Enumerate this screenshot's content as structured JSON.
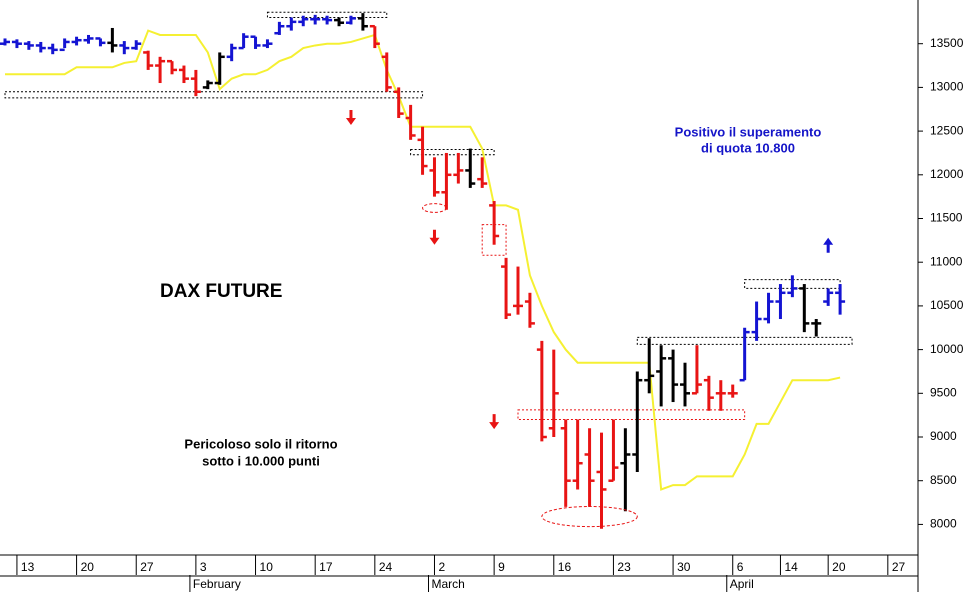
{
  "chart_data": {
    "type": "ohlc",
    "title": "DAX FUTURE",
    "annotations": [
      [
        "Positivo il superamento",
        "di quota 10.800"
      ],
      [
        "Pericoloso solo il ritorno",
        "sotto i 10.000 punti"
      ]
    ],
    "categories": [
      null,
      "13",
      null,
      null,
      null,
      null,
      "20",
      null,
      null,
      null,
      null,
      "27",
      null,
      null,
      null,
      null,
      "3",
      null,
      null,
      null,
      null,
      "10",
      null,
      null,
      null,
      null,
      "17",
      null,
      null,
      null,
      null,
      "24",
      null,
      null,
      null,
      null,
      "2",
      null,
      null,
      null,
      null,
      "9",
      null,
      null,
      null,
      null,
      "16",
      null,
      null,
      null,
      null,
      "23",
      null,
      null,
      null,
      null,
      "30",
      null,
      null,
      null,
      null,
      "6",
      null,
      null,
      null,
      "14",
      null,
      null,
      null,
      "20",
      null,
      null,
      null,
      null,
      "27",
      null,
      null
    ],
    "months": [
      {
        "index": 16,
        "label": "February"
      },
      {
        "index": 36,
        "label": "March"
      },
      {
        "index": 61,
        "label": "April"
      }
    ],
    "open": [
      13500,
      13520,
      13500,
      13480,
      13450,
      13430,
      13520,
      13540,
      13560,
      13510,
      13480,
      13450,
      13400,
      13250,
      13300,
      13200,
      13100,
      13000,
      13050,
      13350,
      13450,
      13580,
      13480,
      13620,
      13700,
      13750,
      13780,
      13780,
      13770,
      13740,
      13790,
      13700,
      13350,
      12950,
      12650,
      12400,
      12050,
      11800,
      12000,
      12050,
      11950,
      11650,
      10950,
      10500,
      10550,
      10000,
      9100,
      9100,
      8500,
      8800,
      8600,
      8500,
      8700,
      8800,
      9650,
      9750,
      9900,
      9600,
      9500,
      9650,
      9500,
      9500,
      9650,
      10200,
      10350,
      10550,
      10650,
      10700,
      10300,
      10550,
      10650,
      null,
      null,
      null,
      null,
      null,
      null
    ],
    "high": [
      13560,
      13550,
      13530,
      13520,
      13500,
      13560,
      13580,
      13600,
      13560,
      13680,
      13530,
      13540,
      13420,
      13350,
      13300,
      13250,
      13200,
      13080,
      13400,
      13500,
      13620,
      13580,
      13550,
      13750,
      13800,
      13820,
      13830,
      13820,
      13800,
      13820,
      13850,
      13700,
      13400,
      13000,
      12800,
      12550,
      12200,
      12250,
      12250,
      12300,
      12200,
      11700,
      11050,
      10950,
      10650,
      10100,
      10000,
      9200,
      9200,
      9100,
      9050,
      9200,
      9100,
      9750,
      10130,
      10050,
      10000,
      9850,
      10050,
      9700,
      9650,
      9600,
      10250,
      10550,
      10650,
      10750,
      10850,
      10750,
      10350,
      10700,
      10750,
      null,
      null,
      null,
      null,
      null,
      null
    ],
    "low": [
      13480,
      13450,
      13430,
      13400,
      13380,
      13450,
      13480,
      13500,
      13470,
      13400,
      13380,
      13430,
      13200,
      13050,
      13150,
      13050,
      12900,
      12980,
      13030,
      13300,
      13450,
      13440,
      13450,
      13600,
      13650,
      13700,
      13720,
      13720,
      13700,
      13720,
      13650,
      13450,
      12950,
      12650,
      12400,
      12000,
      11750,
      11600,
      11900,
      11850,
      11850,
      11200,
      10350,
      10400,
      10250,
      8950,
      9000,
      8200,
      8400,
      8200,
      7950,
      8500,
      8150,
      8600,
      9500,
      9350,
      9400,
      9350,
      9500,
      9300,
      9300,
      9450,
      9650,
      10100,
      10300,
      10350,
      10600,
      10200,
      10150,
      10500,
      10400,
      null,
      null,
      null,
      null,
      null,
      null
    ],
    "close": [
      13520,
      13500,
      13480,
      13450,
      13430,
      13520,
      13540,
      13560,
      13510,
      13480,
      13450,
      13500,
      13250,
      13300,
      13200,
      13100,
      12950,
      13050,
      13350,
      13450,
      13580,
      13480,
      13500,
      13700,
      13750,
      13780,
      13780,
      13770,
      13740,
      13790,
      13700,
      13500,
      13000,
      12700,
      12450,
      12100,
      11800,
      12000,
      12050,
      11900,
      11900,
      11300,
      10400,
      10500,
      10300,
      9000,
      9500,
      8500,
      8700,
      8500,
      8400,
      8650,
      8800,
      9650,
      9700,
      9900,
      9600,
      9500,
      9600,
      9450,
      9500,
      9500,
      10200,
      10350,
      10550,
      10650,
      10700,
      10300,
      10300,
      10650,
      10550,
      null,
      null,
      null,
      null,
      null,
      null
    ],
    "bar_colors": [
      "#1414d2",
      "#1414d2",
      "#1414d2",
      "#1414d2",
      "#1414d2",
      "#1414d2",
      "#1414d2",
      "#1414d2",
      "#1414d2",
      "#000000",
      "#1414d2",
      "#1414d2",
      "#e81414",
      "#e81414",
      "#e81414",
      "#e81414",
      "#e81414",
      "#000000",
      "#000000",
      "#1414d2",
      "#1414d2",
      "#1414d2",
      "#1414d2",
      "#1414d2",
      "#1414d2",
      "#1414d2",
      "#1414d2",
      "#1414d2",
      "#000000",
      "#1414d2",
      "#000000",
      "#e81414",
      "#e81414",
      "#e81414",
      "#e81414",
      "#e81414",
      "#e81414",
      "#e81414",
      "#e81414",
      "#000000",
      "#e81414",
      "#e81414",
      "#e81414",
      "#e81414",
      "#e81414",
      "#e81414",
      "#e81414",
      "#e81414",
      "#e81414",
      "#e81414",
      "#e81414",
      "#e81414",
      "#000000",
      "#000000",
      "#000000",
      "#000000",
      "#000000",
      "#000000",
      "#e81414",
      "#e81414",
      "#e81414",
      "#e81414",
      "#1414d2",
      "#1414d2",
      "#1414d2",
      "#1414d2",
      "#1414d2",
      "#000000",
      "#000000",
      "#1414d2",
      "#1414d2",
      null,
      null,
      null,
      null,
      null,
      null
    ],
    "stop": {
      "color": "#f5f032",
      "values": [
        13150,
        13150,
        13150,
        13150,
        13150,
        13150,
        13230,
        13230,
        13230,
        13230,
        13280,
        13300,
        13650,
        13600,
        13600,
        13600,
        13600,
        13400,
        12980,
        13100,
        13150,
        13150,
        13200,
        13300,
        13350,
        13450,
        13480,
        13500,
        13500,
        13520,
        13560,
        13600,
        13200,
        12900,
        12550,
        12550,
        12550,
        12550,
        12550,
        12550,
        12300,
        11650,
        11650,
        11600,
        10850,
        10500,
        10200,
        10000,
        9850,
        9850,
        9850,
        9850,
        9850,
        9850,
        9850,
        8400,
        8450,
        8450,
        8550,
        8550,
        8550,
        8550,
        8800,
        9150,
        9150,
        9400,
        9650,
        9650,
        9650,
        9650,
        9680,
        null,
        null,
        null,
        null,
        null,
        null
      ]
    },
    "levels": [
      {
        "start": 22,
        "end": 32,
        "low": 13800,
        "high": 13860,
        "color": "#000000"
      },
      {
        "start": 0,
        "end": 35,
        "low": 12880,
        "high": 12950,
        "color": "#000000"
      },
      {
        "start": 34,
        "end": 41,
        "low": 12230,
        "high": 12290,
        "color": "#000000"
      },
      {
        "start": 40,
        "end": 42,
        "low": 11080,
        "high": 11430,
        "color": "#e81414"
      },
      {
        "start": 43,
        "end": 62,
        "low": 9200,
        "high": 9310,
        "color": "#e81414"
      },
      {
        "start": 53,
        "end": 71,
        "low": 10060,
        "high": 10140,
        "color": "#000000"
      },
      {
        "start": 62,
        "end": 70,
        "low": 10700,
        "high": 10800,
        "color": "#000000"
      }
    ],
    "ellipses": [
      {
        "index": 36,
        "value": 11620,
        "span": 2,
        "height": 100,
        "color": "#e81414"
      },
      {
        "index": 49,
        "value": 8090,
        "span": 8,
        "height": 230,
        "color": "#e81414"
      }
    ],
    "arrows": [
      {
        "index": 29,
        "value": 12650,
        "direction": "down",
        "color": "#e81414"
      },
      {
        "index": 36,
        "value": 11280,
        "direction": "down",
        "color": "#e81414"
      },
      {
        "index": 41,
        "value": 9170,
        "direction": "down",
        "color": "#e81414"
      },
      {
        "index": 69,
        "value": 11200,
        "direction": "up",
        "color": "#1414d2"
      }
    ],
    "ylim": [
      7650,
      14000
    ],
    "yticks": [
      8000,
      8500,
      9000,
      9500,
      10000,
      10500,
      11000,
      11500,
      12000,
      12500,
      13000,
      13500
    ],
    "grid": false
  }
}
